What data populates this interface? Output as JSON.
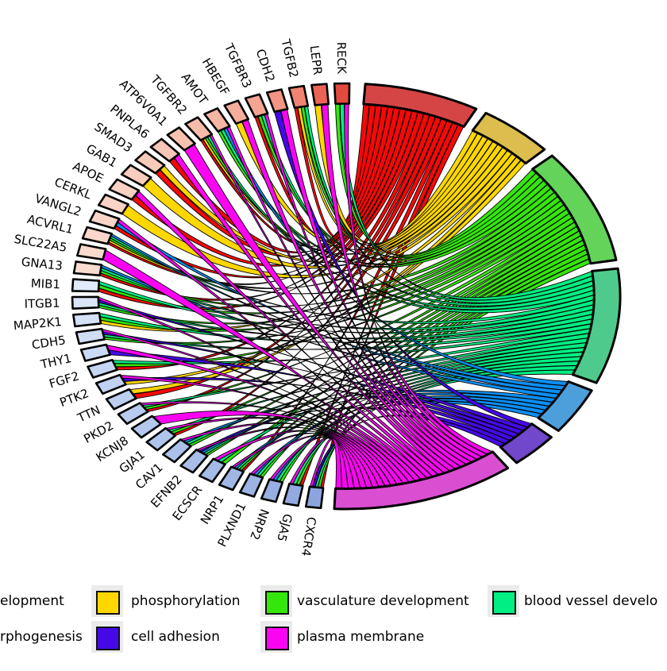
{
  "chart_data": {
    "type": "chord",
    "title": "",
    "description": "GO-term chord diagram: genes (left semicircle, boxes colored by logFC red-to-blue) linked by ribbons to GO process arcs (right semicircle). Legend partially cropped at left and right image edges.",
    "processes": [
      {
        "id": "term-red",
        "legend_label": "elopment",
        "label_truncated": true,
        "ribbon_color": "#F50808",
        "arc_color": "#D64545",
        "legend_square_visible": false,
        "legend_row": 0,
        "legend_col": 0
      },
      {
        "id": "phosphorylation",
        "legend_label": "phosphorylation",
        "label_truncated": false,
        "ribbon_color": "#FFD700",
        "arc_color": "#DCBD4E",
        "legend_square_visible": true,
        "legend_row": 0,
        "legend_col": 1
      },
      {
        "id": "vasculature-development",
        "legend_label": "vasculature development",
        "label_truncated": false,
        "ribbon_color": "#35E60D",
        "arc_color": "#63D35A",
        "legend_square_visible": true,
        "legend_row": 0,
        "legend_col": 2
      },
      {
        "id": "blood-vessel-development",
        "legend_label": "blood vessel develo",
        "label_truncated": true,
        "ribbon_color": "#00EE82",
        "arc_color": "#4ECB8C",
        "legend_square_visible": true,
        "legend_row": 0,
        "legend_col": 3
      },
      {
        "id": "term-blue",
        "legend_label": "rphogenesis",
        "label_truncated": true,
        "ribbon_color": "#0D8FF5",
        "arc_color": "#4D9FDC",
        "legend_square_visible": false,
        "legend_row": 1,
        "legend_col": 0
      },
      {
        "id": "cell-adhesion",
        "legend_label": "cell adhesion",
        "label_truncated": false,
        "ribbon_color": "#4509E8",
        "arc_color": "#7147CC",
        "legend_square_visible": true,
        "legend_row": 1,
        "legend_col": 1
      },
      {
        "id": "plasma-membrane",
        "legend_label": "plasma membrane",
        "label_truncated": false,
        "ribbon_color": "#FA05F2",
        "arc_color": "#DA4ED2",
        "legend_square_visible": true,
        "legend_row": 1,
        "legend_col": 2
      }
    ],
    "genes": [
      {
        "name": "RECK",
        "box_color": "#e4493d",
        "processes": [
          2,
          3,
          6
        ]
      },
      {
        "name": "LEPR",
        "box_color": "#ec6355",
        "processes": [
          1,
          6
        ]
      },
      {
        "name": "TGFB2",
        "box_color": "#f08371",
        "processes": [
          0,
          1,
          2,
          3
        ]
      },
      {
        "name": "CDH2",
        "box_color": "#f29684",
        "processes": [
          5,
          6
        ]
      },
      {
        "name": "TGFBR3",
        "box_color": "#f4a492",
        "processes": [
          0,
          2,
          3,
          6
        ]
      },
      {
        "name": "HBEGF",
        "box_color": "#f5ae9c",
        "processes": [
          1,
          6
        ]
      },
      {
        "name": "AMOT",
        "box_color": "#f6b6a4",
        "processes": [
          2,
          3,
          4,
          6
        ]
      },
      {
        "name": "TGFBR2",
        "box_color": "#f6bcaa",
        "processes": [
          0,
          1,
          2,
          3,
          6
        ]
      },
      {
        "name": "ATP6V0A1",
        "box_color": "#f7c2b0",
        "processes": [
          6
        ]
      },
      {
        "name": "PNPLA6",
        "box_color": "#f7c6b6",
        "processes": [
          0,
          6
        ]
      },
      {
        "name": "SMAD3",
        "box_color": "#f8caba",
        "processes": [
          0,
          1
        ]
      },
      {
        "name": "GAB1",
        "box_color": "#f8cdbe",
        "processes": [
          1
        ]
      },
      {
        "name": "APOE",
        "box_color": "#f9d0c2",
        "processes": [
          0,
          6
        ]
      },
      {
        "name": "CERKL",
        "box_color": "#f9d3c5",
        "processes": [
          1
        ]
      },
      {
        "name": "VANGL2",
        "box_color": "#f9d5c8",
        "processes": [
          0,
          4,
          6
        ]
      },
      {
        "name": "ACVRL1",
        "box_color": "#fad7ca",
        "processes": [
          0,
          1,
          2,
          3,
          4
        ]
      },
      {
        "name": "SLC22A5",
        "box_color": "#fad9cd",
        "processes": [
          6
        ]
      },
      {
        "name": "GNA13",
        "box_color": "#fadbd0",
        "processes": [
          0,
          2,
          3,
          4
        ]
      },
      {
        "name": "MIB1",
        "box_color": "#e0eafa",
        "processes": [
          0,
          2,
          3
        ]
      },
      {
        "name": "ITGB1",
        "box_color": "#dae5f8",
        "processes": [
          2,
          3,
          5,
          6
        ]
      },
      {
        "name": "MAP2K1",
        "box_color": "#d4e1f7",
        "processes": [
          1,
          2,
          3
        ]
      },
      {
        "name": "CDH5",
        "box_color": "#cfddf5",
        "processes": [
          2,
          3,
          5,
          6
        ]
      },
      {
        "name": "THY1",
        "box_color": "#cad9f4",
        "processes": [
          5,
          6
        ]
      },
      {
        "name": "FGF2",
        "box_color": "#c5d5f2",
        "processes": [
          0,
          2,
          3
        ]
      },
      {
        "name": "PTK2",
        "box_color": "#c0d2f1",
        "processes": [
          1,
          5,
          6
        ]
      },
      {
        "name": "TTN",
        "box_color": "#bccfef",
        "processes": [
          0,
          1
        ]
      },
      {
        "name": "PKD2",
        "box_color": "#b8cbee",
        "processes": [
          0,
          2,
          3,
          6
        ]
      },
      {
        "name": "KCNJ8",
        "box_color": "#b4c8ed",
        "processes": [
          6
        ]
      },
      {
        "name": "GJA1",
        "box_color": "#b0c5eb",
        "processes": [
          0,
          2,
          3,
          6
        ]
      },
      {
        "name": "CAV1",
        "box_color": "#acc1ea",
        "processes": [
          2,
          3,
          4,
          6
        ]
      },
      {
        "name": "EFNB2",
        "box_color": "#a8bee8",
        "processes": [
          2,
          3,
          4,
          5,
          6
        ]
      },
      {
        "name": "ECSCR",
        "box_color": "#a4bae7",
        "processes": [
          2,
          3,
          6
        ]
      },
      {
        "name": "NRP1",
        "box_color": "#a0b7e5",
        "processes": [
          0,
          2,
          3,
          4,
          6
        ]
      },
      {
        "name": "PLXND1",
        "box_color": "#9cb3e4",
        "processes": [
          2,
          3,
          4,
          6
        ]
      },
      {
        "name": "NRP2",
        "box_color": "#97afe2",
        "processes": [
          2,
          3,
          4,
          6
        ]
      },
      {
        "name": "GJA5",
        "box_color": "#92aae0",
        "processes": [
          0,
          2,
          3,
          6
        ]
      },
      {
        "name": "CXCR4",
        "box_color": "#8da5de",
        "processes": [
          0,
          2,
          3,
          5,
          6
        ]
      }
    ],
    "legend_position": "bottom",
    "background_color": "#ffffff"
  }
}
